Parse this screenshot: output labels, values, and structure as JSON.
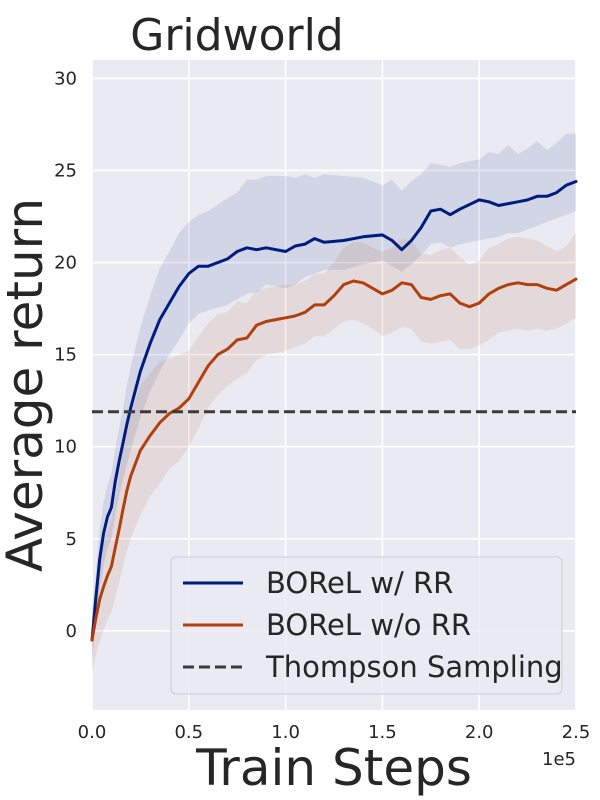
{
  "chart_data": {
    "type": "line",
    "title": "Gridworld",
    "xlabel": "Train Steps",
    "ylabel": "Average return",
    "x_scale_label": "1e5",
    "xlim": [
      0,
      2.5
    ],
    "ylim": [
      -4.3,
      31
    ],
    "x_ticks": [
      0.0,
      0.5,
      1.0,
      1.5,
      2.0,
      2.5
    ],
    "x_tick_labels": [
      "0.0",
      "0.5",
      "1.0",
      "1.5",
      "2.0",
      "2.5"
    ],
    "y_ticks": [
      0,
      5,
      10,
      15,
      20,
      25,
      30
    ],
    "y_tick_labels": [
      "0",
      "5",
      "10",
      "15",
      "20",
      "25",
      "30"
    ],
    "grid": true,
    "legend_position": "bottom-right",
    "series": [
      {
        "name": "BOReL w/ RR",
        "color": "#001c7f",
        "band_color": "#001c7f",
        "x": [
          0.0,
          0.02,
          0.04,
          0.06,
          0.08,
          0.1,
          0.12,
          0.14,
          0.16,
          0.18,
          0.2,
          0.25,
          0.3,
          0.35,
          0.4,
          0.45,
          0.5,
          0.55,
          0.6,
          0.7,
          0.75,
          0.8,
          0.85,
          0.9,
          1.0,
          1.05,
          1.1,
          1.15,
          1.2,
          1.3,
          1.4,
          1.5,
          1.55,
          1.6,
          1.65,
          1.7,
          1.75,
          1.8,
          1.85,
          1.9,
          2.0,
          2.05,
          2.1,
          2.15,
          2.2,
          2.25,
          2.3,
          2.35,
          2.4,
          2.45,
          2.5
        ],
        "values": [
          -0.5,
          1.8,
          3.9,
          5.3,
          6.2,
          6.7,
          8.1,
          9.2,
          10.2,
          11.2,
          12.1,
          14.1,
          15.6,
          16.9,
          17.8,
          18.7,
          19.4,
          19.8,
          19.8,
          20.2,
          20.6,
          20.8,
          20.7,
          20.8,
          20.6,
          20.9,
          21.0,
          21.3,
          21.1,
          21.2,
          21.4,
          21.5,
          21.2,
          20.7,
          21.2,
          21.9,
          22.8,
          22.9,
          22.6,
          22.9,
          23.4,
          23.3,
          23.1,
          23.2,
          23.3,
          23.4,
          23.6,
          23.6,
          23.8,
          24.2,
          24.4
        ],
        "lower": [
          -1.7,
          0.4,
          2.3,
          3.6,
          4.5,
          5.0,
          6.3,
          7.3,
          8.2,
          9.0,
          9.8,
          11.6,
          13.0,
          14.1,
          15.0,
          15.8,
          16.7,
          17.2,
          17.4,
          17.7,
          18.0,
          18.3,
          18.4,
          18.8,
          18.6,
          18.8,
          19.2,
          19.4,
          19.6,
          19.6,
          19.9,
          20.1,
          19.8,
          19.5,
          19.9,
          20.4,
          21.0,
          21.1,
          20.8,
          21.0,
          21.2,
          21.3,
          21.4,
          21.6,
          21.6,
          21.8,
          22.0,
          22.2,
          22.4,
          22.6,
          22.8
        ],
        "upper": [
          0.6,
          3.2,
          5.5,
          7.0,
          7.9,
          8.5,
          9.9,
          11.0,
          12.1,
          13.3,
          14.3,
          16.5,
          18.2,
          19.7,
          20.6,
          21.6,
          22.2,
          22.6,
          22.8,
          23.5,
          23.8,
          24.5,
          24.5,
          24.7,
          24.7,
          24.6,
          24.8,
          24.6,
          24.8,
          24.7,
          24.6,
          24.2,
          24.5,
          23.9,
          24.4,
          24.8,
          25.4,
          25.3,
          25.2,
          25.4,
          25.6,
          26.0,
          25.9,
          26.4,
          25.9,
          26.2,
          26.6,
          26.1,
          26.5,
          27.0,
          27.0
        ]
      },
      {
        "name": "BOReL w/o RR",
        "color": "#b1400d",
        "band_color": "#b1400d",
        "x": [
          0.0,
          0.02,
          0.04,
          0.06,
          0.08,
          0.1,
          0.12,
          0.14,
          0.16,
          0.18,
          0.2,
          0.25,
          0.3,
          0.35,
          0.4,
          0.45,
          0.5,
          0.55,
          0.6,
          0.65,
          0.7,
          0.75,
          0.8,
          0.85,
          0.9,
          0.95,
          1.0,
          1.05,
          1.1,
          1.15,
          1.2,
          1.25,
          1.3,
          1.35,
          1.4,
          1.45,
          1.5,
          1.55,
          1.6,
          1.65,
          1.7,
          1.75,
          1.8,
          1.85,
          1.9,
          1.95,
          2.0,
          2.05,
          2.1,
          2.15,
          2.2,
          2.25,
          2.3,
          2.35,
          2.4,
          2.45,
          2.5
        ],
        "values": [
          -0.5,
          0.7,
          1.7,
          2.4,
          3.0,
          3.5,
          4.5,
          5.5,
          6.6,
          7.6,
          8.4,
          9.8,
          10.6,
          11.3,
          11.8,
          12.1,
          12.6,
          13.5,
          14.4,
          15.0,
          15.3,
          15.8,
          15.9,
          16.6,
          16.8,
          16.9,
          17.0,
          17.1,
          17.3,
          17.7,
          17.7,
          18.2,
          18.8,
          19.0,
          18.9,
          18.6,
          18.3,
          18.5,
          18.9,
          18.8,
          18.1,
          18.0,
          18.2,
          18.3,
          17.8,
          17.6,
          17.8,
          18.3,
          18.6,
          18.8,
          18.9,
          18.8,
          18.8,
          18.6,
          18.5,
          18.8,
          19.1
        ],
        "lower": [
          -2.3,
          -1.3,
          -0.6,
          0.0,
          0.6,
          1.0,
          1.8,
          2.6,
          3.5,
          4.3,
          5.0,
          6.3,
          7.3,
          8.0,
          8.8,
          9.2,
          10.0,
          11.0,
          12.1,
          12.8,
          13.3,
          13.7,
          14.0,
          14.7,
          15.0,
          15.1,
          15.2,
          15.4,
          15.6,
          16.0,
          16.0,
          16.4,
          16.8,
          16.9,
          16.7,
          16.4,
          16.0,
          16.2,
          16.5,
          16.4,
          15.7,
          15.6,
          15.7,
          15.8,
          15.3,
          15.3,
          15.5,
          15.8,
          16.2,
          16.3,
          16.4,
          16.3,
          16.4,
          16.3,
          16.4,
          16.7,
          17.0
        ],
        "upper": [
          1.3,
          2.7,
          4.0,
          4.8,
          5.4,
          6.0,
          7.2,
          8.4,
          9.7,
          10.9,
          11.8,
          13.3,
          14.0,
          14.6,
          14.8,
          15.0,
          15.2,
          16.0,
          16.7,
          17.2,
          17.3,
          17.9,
          17.8,
          18.5,
          18.6,
          18.7,
          18.8,
          18.8,
          19.0,
          19.4,
          19.4,
          20.0,
          20.8,
          21.1,
          21.1,
          20.8,
          20.6,
          20.8,
          21.3,
          21.2,
          20.5,
          20.4,
          20.7,
          20.8,
          20.3,
          19.9,
          20.1,
          20.8,
          21.0,
          21.3,
          21.4,
          21.3,
          21.2,
          20.9,
          20.6,
          20.9,
          21.6
        ]
      },
      {
        "name": "Thompson Sampling",
        "color": "#3b3b3b",
        "style": "dashed",
        "x": [
          0.0,
          2.5
        ],
        "values": [
          11.9,
          11.9
        ]
      }
    ]
  }
}
